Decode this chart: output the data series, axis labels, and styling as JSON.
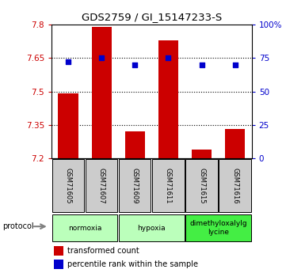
{
  "title": "GDS2759 / GI_15147233-S",
  "samples": [
    "GSM71605",
    "GSM71607",
    "GSM71609",
    "GSM71611",
    "GSM71615",
    "GSM71616"
  ],
  "bar_values": [
    7.49,
    7.79,
    7.32,
    7.73,
    7.24,
    7.33
  ],
  "percentile_values": [
    72,
    75,
    70,
    75,
    70,
    70
  ],
  "ylim_left": [
    7.2,
    7.8
  ],
  "ylim_right": [
    0,
    100
  ],
  "yticks_left": [
    7.2,
    7.35,
    7.5,
    7.65,
    7.8
  ],
  "ytick_labels_left": [
    "7.2",
    "7.35",
    "7.5",
    "7.65",
    "7.8"
  ],
  "yticks_right": [
    0,
    25,
    50,
    75,
    100
  ],
  "ytick_labels_right": [
    "0",
    "25",
    "50",
    "75",
    "100%"
  ],
  "bar_color": "#cc0000",
  "dot_color": "#0000cc",
  "baseline": 7.2,
  "bar_width": 0.6,
  "grid_lines": [
    7.35,
    7.5,
    7.65
  ],
  "protocols": [
    {
      "label": "normoxia",
      "start": 0,
      "end": 2,
      "color": "#bbffbb"
    },
    {
      "label": "hypoxia",
      "start": 2,
      "end": 4,
      "color": "#bbffbb"
    },
    {
      "label": "dimethyloxalylg\nlycine",
      "start": 4,
      "end": 6,
      "color": "#44ee44"
    }
  ],
  "legend_items": [
    {
      "label": "transformed count",
      "color": "#cc0000"
    },
    {
      "label": "percentile rank within the sample",
      "color": "#0000cc"
    }
  ],
  "protocol_label": "protocol",
  "background_color": "#ffffff",
  "plot_bg_color": "#ffffff",
  "sample_box_color": "#cccccc"
}
